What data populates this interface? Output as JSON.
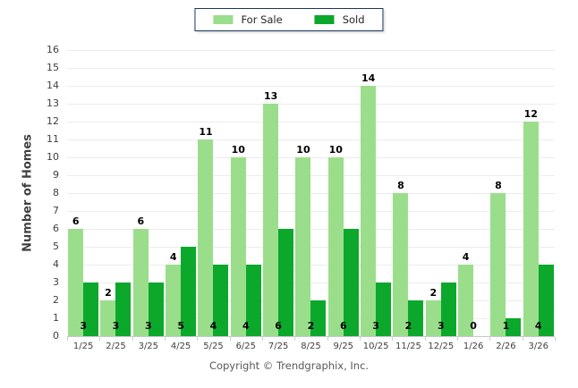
{
  "legend": {
    "for_sale_label": "For Sale",
    "sold_label": "Sold"
  },
  "y_axis": {
    "title": "Number of Homes",
    "ticks": [
      0,
      1,
      2,
      3,
      4,
      5,
      6,
      7,
      8,
      9,
      10,
      11,
      12,
      13,
      14,
      15,
      16
    ]
  },
  "footer": {
    "copyright": "Copyright © Trendgraphix, Inc."
  },
  "colors": {
    "for_sale": "#9ADE8B",
    "sold": "#0CA82B",
    "legend_border": "#17375E",
    "gridline": "#ECECEC",
    "axis": "#C8C8C8"
  },
  "chart_data": {
    "type": "bar",
    "categories": [
      "1/25",
      "2/25",
      "3/25",
      "4/25",
      "5/25",
      "6/25",
      "7/25",
      "8/25",
      "9/25",
      "10/25",
      "11/25",
      "12/25",
      "1/26",
      "2/26",
      "3/26"
    ],
    "series": [
      {
        "name": "For Sale",
        "values": [
          6,
          2,
          6,
          4,
          11,
          10,
          13,
          10,
          10,
          14,
          8,
          2,
          4,
          8,
          12
        ]
      },
      {
        "name": "Sold",
        "values": [
          3,
          3,
          3,
          5,
          4,
          4,
          6,
          2,
          6,
          3,
          2,
          3,
          0,
          1,
          4
        ]
      }
    ],
    "title": "",
    "xlabel": "",
    "ylabel": "Number of Homes",
    "ylim": [
      0,
      16
    ],
    "grid": true,
    "legend_position": "top"
  }
}
